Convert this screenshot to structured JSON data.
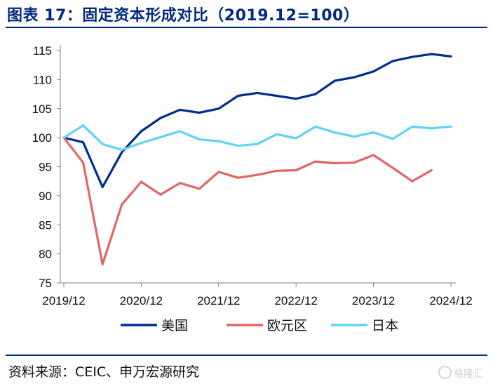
{
  "header": {
    "title": "图表 17：固定资本形成对比（2019.12=100）"
  },
  "footer": {
    "source": "资料来源：CEIC、申万宏源研究",
    "watermark": "格隆汇"
  },
  "chart_data": {
    "type": "line",
    "title": "图表 17：固定资本形成对比（2019.12=100）",
    "xlabel": "",
    "ylabel": "",
    "ylim": [
      75,
      115
    ],
    "yticks": [
      75,
      80,
      85,
      90,
      95,
      100,
      105,
      110,
      115
    ],
    "xtick_labels": [
      "2019/12",
      "2020/12",
      "2021/12",
      "2022/12",
      "2023/12",
      "2024/12"
    ],
    "x": [
      "2019/12",
      "2020/03",
      "2020/06",
      "2020/09",
      "2020/12",
      "2021/03",
      "2021/06",
      "2021/09",
      "2021/12",
      "2022/03",
      "2022/06",
      "2022/09",
      "2022/12",
      "2023/03",
      "2023/06",
      "2023/09",
      "2023/12",
      "2024/03",
      "2024/06",
      "2024/09",
      "2024/12"
    ],
    "grid": false,
    "legend": "bottom",
    "series": [
      {
        "name": "美国",
        "color": "#002d8c",
        "values": [
          100,
          99.2,
          91.5,
          97.5,
          101.1,
          103.4,
          104.8,
          104.3,
          105.0,
          107.2,
          107.7,
          107.2,
          106.7,
          107.5,
          109.8,
          110.4,
          111.4,
          113.2,
          113.9,
          114.4,
          114.0
        ]
      },
      {
        "name": "欧元区",
        "color": "#e06666",
        "values": [
          100,
          95.7,
          78.2,
          88.5,
          92.4,
          90.2,
          92.2,
          91.2,
          94.1,
          93.1,
          93.6,
          94.3,
          94.4,
          95.9,
          95.6,
          95.7,
          97.0,
          94.8,
          92.5,
          94.4,
          null
        ]
      },
      {
        "name": "日本",
        "color": "#5ed4f5",
        "values": [
          100,
          102.1,
          98.9,
          97.9,
          99.1,
          100.1,
          101.1,
          99.7,
          99.4,
          98.6,
          98.9,
          100.6,
          99.9,
          101.9,
          100.9,
          100.2,
          100.9,
          99.8,
          101.9,
          101.6,
          101.9
        ]
      }
    ]
  }
}
